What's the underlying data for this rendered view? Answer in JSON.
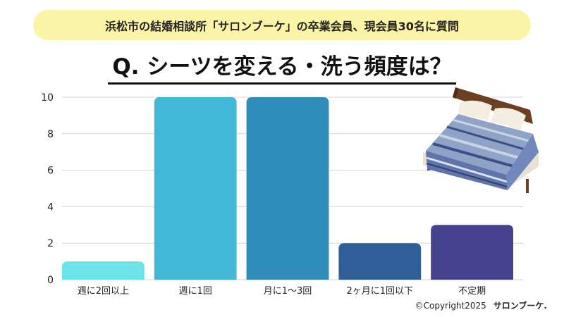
{
  "banner": {
    "text": "浜松市の結婚相談所「サロンブーケ」の卒業会員、現会員30名に質問"
  },
  "question": {
    "text": "Q. シーツを変える・洗う頻度は？"
  },
  "copyright": {
    "text": "©Copyright2025",
    "brand": "サロンブーケ."
  },
  "chart_data": {
    "type": "bar",
    "categories": [
      "週に2回以上",
      "週に1回",
      "月に1～3回",
      "2ヶ月に1回以下",
      "不定期"
    ],
    "values": [
      1,
      10,
      10,
      2,
      3
    ],
    "bar_colors": [
      "#6be3e8",
      "#43b7d6",
      "#2e8bba",
      "#2f5e99",
      "#46418f"
    ],
    "ylim": [
      0,
      10
    ],
    "yticks": [
      0,
      2,
      4,
      6,
      8,
      10
    ],
    "grid": true,
    "title": "",
    "xlabel": "",
    "ylabel": ""
  }
}
